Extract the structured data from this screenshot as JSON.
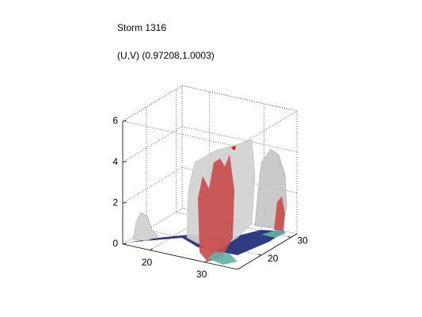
{
  "chart_data": {
    "type": "isosurface3d",
    "title": "Storm 1316",
    "subtitle": "(U,V) (0.97208,1.0003)",
    "xlim": [
      15,
      36
    ],
    "xticks": [
      20,
      30
    ],
    "ylim": [
      12,
      32
    ],
    "yticks": [
      20,
      30
    ],
    "zlim": [
      0,
      6
    ],
    "zticks": [
      0,
      2,
      4,
      6
    ],
    "grid": true
  }
}
